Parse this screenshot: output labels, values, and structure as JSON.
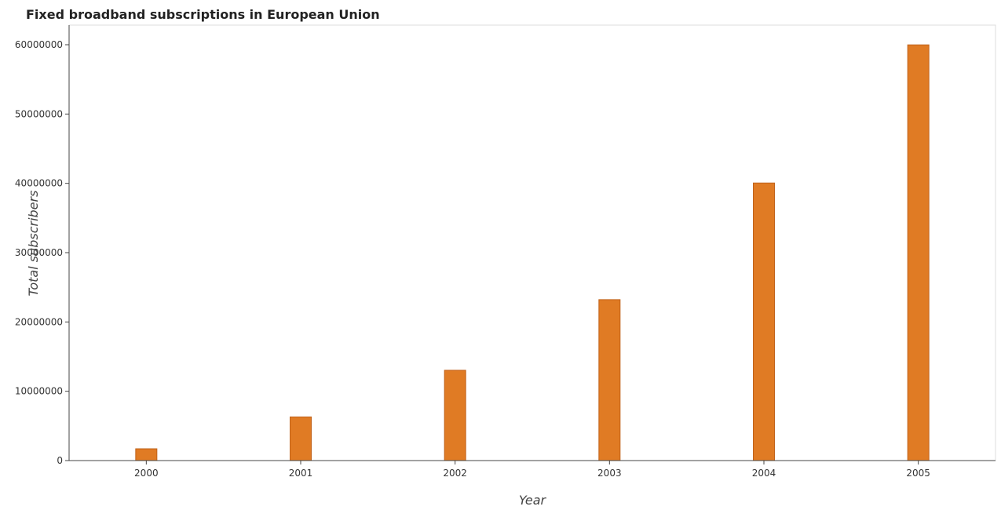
{
  "chart_data": {
    "type": "bar",
    "title": "Fixed broadband subscriptions in European Union",
    "xlabel": "Year",
    "ylabel": "Total subscribers",
    "categories": [
      "2000",
      "2001",
      "2002",
      "2003",
      "2004",
      "2005"
    ],
    "values": [
      1700000,
      6300000,
      13030000,
      23220000,
      40050000,
      59980000
    ],
    "ylim": [
      0,
      64000000
    ],
    "yticks": [
      0,
      10000000,
      20000000,
      30000000,
      40000000,
      50000000,
      60000000
    ],
    "ytick_labels": [
      "0",
      "10000000",
      "20000000",
      "30000000",
      "40000000",
      "50000000",
      "60000000"
    ],
    "bar_color": "#e07b24",
    "grid": false
  }
}
